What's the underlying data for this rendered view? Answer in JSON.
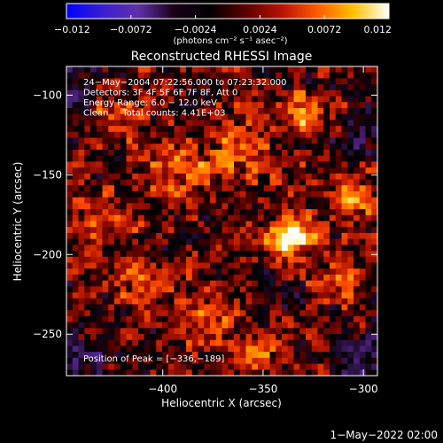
{
  "chart_data": {
    "type": "heatmap",
    "title": "Reconstructed RHESSI Image",
    "xlabel": "Heliocentric X (arcsec)",
    "ylabel": "Heliocentric Y (arcsec)",
    "xlim": [
      -448,
      -293
    ],
    "ylim": [
      -276,
      -82
    ],
    "x_ticks": [
      -400,
      -350,
      -300
    ],
    "x_tick_labels": [
      "−400",
      "−350",
      "−300"
    ],
    "y_ticks": [
      -100,
      -150,
      -200,
      -250
    ],
    "y_tick_labels": [
      "−100",
      "−150",
      "−200",
      "−250"
    ],
    "colorbar": {
      "range": [
        -0.012,
        0.012
      ],
      "ticks": [
        -0.012,
        -0.0072,
        -0.0024,
        0.0024,
        0.0072,
        0.012
      ],
      "tick_labels": [
        "−0.012",
        "−0.0072",
        "−0.0024",
        "0.0024",
        "0.0072",
        "0.012"
      ],
      "unit_label": "(photons cm⁻² s⁻¹ asec⁻²)",
      "colors": [
        "#0000ff",
        "#3a1fd0",
        "#6030a8",
        "#1a0018",
        "#000000",
        "#5c0000",
        "#b81200",
        "#ff5a00",
        "#ffc000",
        "#ffffff"
      ]
    },
    "annotations": [
      "24−May−2004 07:22:56.000 to 07:23:32.000",
      "Detectors: 3F 4F 5F 6F 7F 8F, Att 0",
      "Energy Range: 6.0 − 12.0 keV",
      "Clean     Total counts: 4.41E+03"
    ],
    "peak_label": "Position of Peak = [−336,−189]",
    "peak": {
      "x": -336,
      "y": -189,
      "value": 0.012
    },
    "blobs": [
      {
        "x": -336,
        "y": -189,
        "sigma": 7,
        "value": 0.0125
      },
      {
        "x": -330,
        "y": -112,
        "sigma": 8,
        "value": 0.006
      },
      {
        "x": -425,
        "y": -115,
        "sigma": 10,
        "value": 0.0045
      },
      {
        "x": -360,
        "y": -135,
        "sigma": 12,
        "value": 0.004
      },
      {
        "x": -390,
        "y": -150,
        "sigma": 12,
        "value": 0.0045
      },
      {
        "x": -430,
        "y": -180,
        "sigma": 10,
        "value": 0.004
      },
      {
        "x": -410,
        "y": -215,
        "sigma": 9,
        "value": 0.005
      },
      {
        "x": -380,
        "y": -240,
        "sigma": 10,
        "value": 0.004
      },
      {
        "x": -355,
        "y": -262,
        "sigma": 8,
        "value": 0.006
      },
      {
        "x": -305,
        "y": -165,
        "sigma": 9,
        "value": 0.0045
      },
      {
        "x": -310,
        "y": -215,
        "sigma": 9,
        "value": 0.004
      },
      {
        "x": -300,
        "y": -130,
        "sigma": 8,
        "value": -0.004
      },
      {
        "x": -445,
        "y": -100,
        "sigma": 10,
        "value": -0.005
      },
      {
        "x": -440,
        "y": -265,
        "sigma": 10,
        "value": -0.005
      },
      {
        "x": -298,
        "y": -265,
        "sigma": 10,
        "value": -0.005
      },
      {
        "x": -345,
        "y": -225,
        "sigma": 7,
        "value": -0.003
      }
    ]
  },
  "footer_date": "1−May−2022 02:00"
}
